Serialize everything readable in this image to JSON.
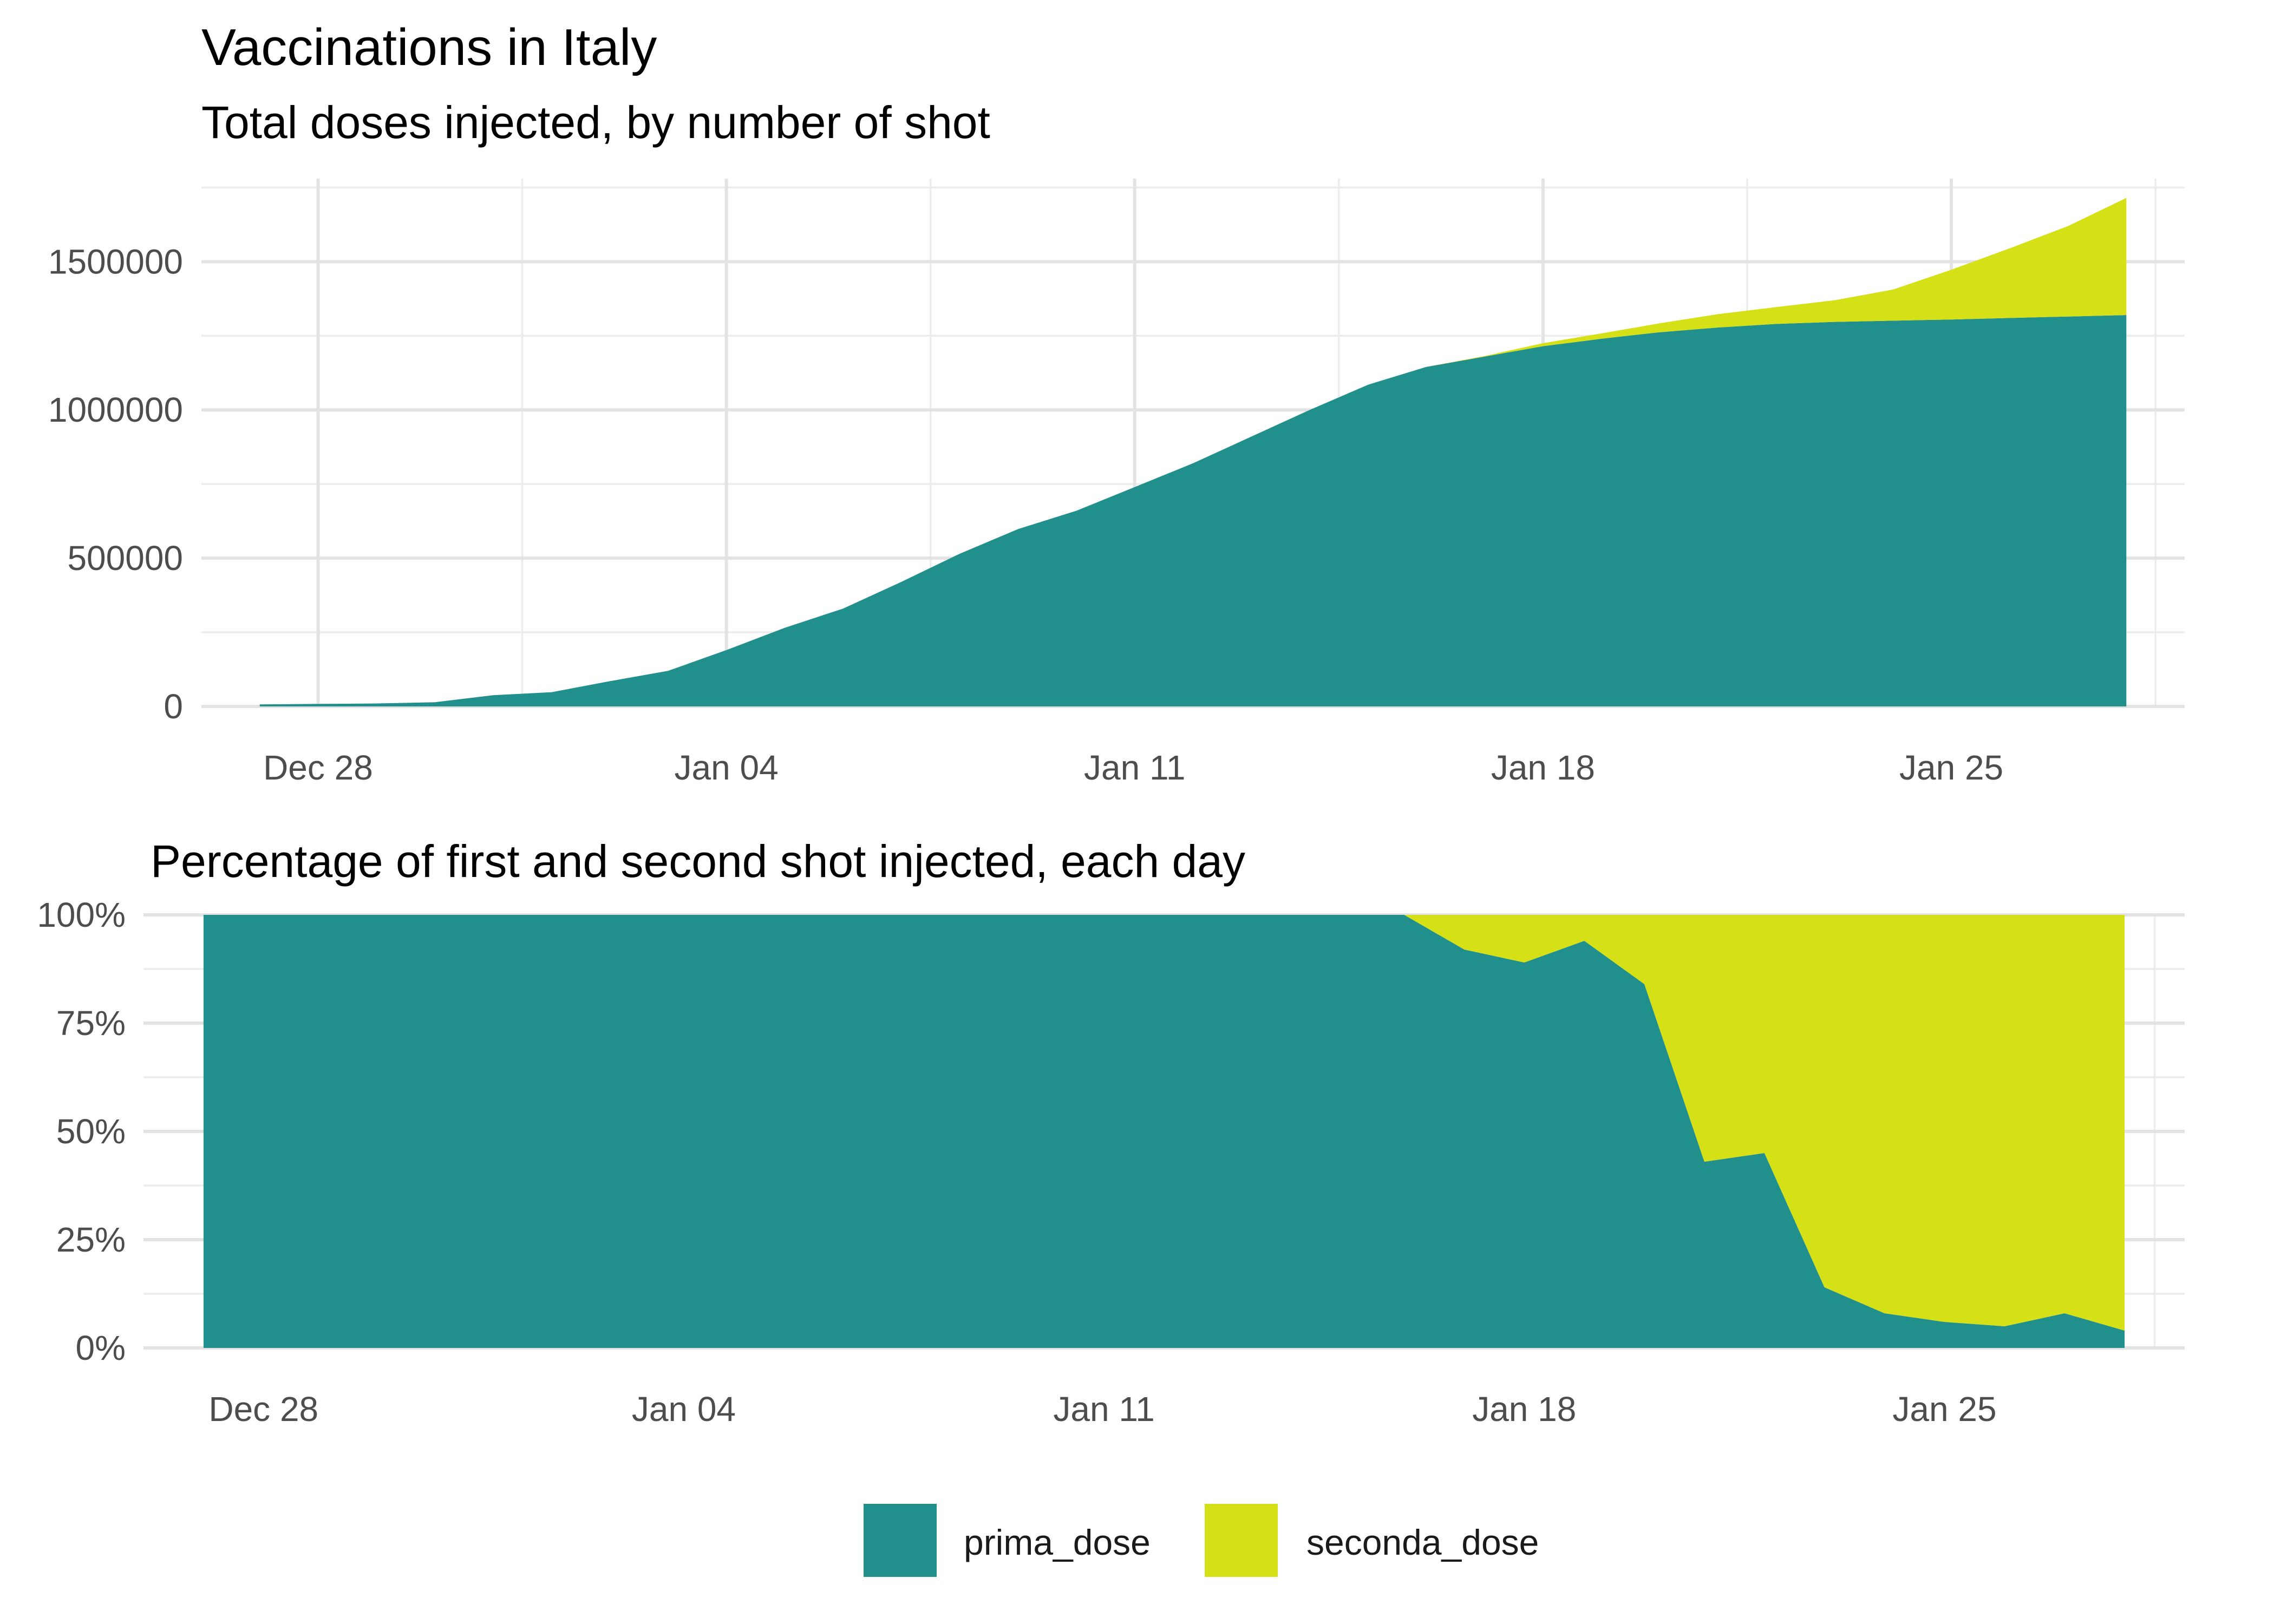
{
  "title": "Vaccinations in Italy",
  "colors": {
    "prima_dose": "#21908C",
    "seconda_dose": "#D5E016",
    "grid": "#E3E3E3",
    "tick_text": "#4D4D4D"
  },
  "legend": {
    "position": "bottom",
    "items": [
      {
        "key": "prima_dose",
        "label": "prima_dose"
      },
      {
        "key": "seconda_dose",
        "label": "seconda_dose"
      }
    ]
  },
  "chart_data": [
    {
      "type": "area",
      "stacked": true,
      "title": "",
      "subtitle": "Total doses injected, by number of shot",
      "xlabel": "",
      "ylabel": "",
      "x": [
        "2020-12-27",
        "2020-12-28",
        "2020-12-29",
        "2020-12-30",
        "2020-12-31",
        "2021-01-01",
        "2021-01-02",
        "2021-01-03",
        "2021-01-04",
        "2021-01-05",
        "2021-01-06",
        "2021-01-07",
        "2021-01-08",
        "2021-01-09",
        "2021-01-10",
        "2021-01-11",
        "2021-01-12",
        "2021-01-13",
        "2021-01-14",
        "2021-01-15",
        "2021-01-16",
        "2021-01-17",
        "2021-01-18",
        "2021-01-19",
        "2021-01-20",
        "2021-01-21",
        "2021-01-22",
        "2021-01-23",
        "2021-01-24",
        "2021-01-25",
        "2021-01-26",
        "2021-01-27",
        "2021-01-28"
      ],
      "series": [
        {
          "name": "prima_dose",
          "values": [
            7000,
            8500,
            10000,
            14000,
            38000,
            48000,
            85000,
            120000,
            190000,
            265000,
            330000,
            420000,
            515000,
            598000,
            660000,
            740000,
            820000,
            910000,
            1000000,
            1085000,
            1145000,
            1180000,
            1215000,
            1240000,
            1262000,
            1278000,
            1290000,
            1297000,
            1301000,
            1305000,
            1310000,
            1315000,
            1320000
          ]
        },
        {
          "name": "seconda_dose",
          "values": [
            0,
            0,
            0,
            0,
            0,
            0,
            0,
            0,
            0,
            0,
            0,
            0,
            0,
            0,
            0,
            0,
            0,
            0,
            0,
            0,
            0,
            2000,
            10000,
            18000,
            30000,
            45000,
            57000,
            73000,
            105000,
            168000,
            235000,
            305000,
            395000
          ]
        }
      ],
      "x_ticks": [
        "Dec 28",
        "Jan 04",
        "Jan 11",
        "Jan 18",
        "Jan 25"
      ],
      "x_tick_dates": [
        "2020-12-28",
        "2021-01-04",
        "2021-01-11",
        "2021-01-18",
        "2021-01-25"
      ],
      "xlim": [
        "2020-12-26",
        "2021-01-29"
      ],
      "y_ticks": [
        0,
        500000,
        1000000,
        1500000
      ],
      "y_tick_labels": [
        "0",
        "500000",
        "1000000",
        "1500000"
      ],
      "ylim": [
        0,
        1780000
      ],
      "grid": true
    },
    {
      "type": "area",
      "stacked": true,
      "normalized": true,
      "title": "",
      "subtitle": "Percentage of first and second shot injected, each day",
      "xlabel": "",
      "ylabel": "",
      "x": [
        "2020-12-27",
        "2020-12-28",
        "2020-12-29",
        "2020-12-30",
        "2020-12-31",
        "2021-01-01",
        "2021-01-02",
        "2021-01-03",
        "2021-01-04",
        "2021-01-05",
        "2021-01-06",
        "2021-01-07",
        "2021-01-08",
        "2021-01-09",
        "2021-01-10",
        "2021-01-11",
        "2021-01-12",
        "2021-01-13",
        "2021-01-14",
        "2021-01-15",
        "2021-01-16",
        "2021-01-17",
        "2021-01-18",
        "2021-01-19",
        "2021-01-20",
        "2021-01-21",
        "2021-01-22",
        "2021-01-23",
        "2021-01-24",
        "2021-01-25",
        "2021-01-26",
        "2021-01-27",
        "2021-01-28"
      ],
      "series": [
        {
          "name": "prima_dose",
          "values": [
            100,
            100,
            100,
            100,
            100,
            100,
            100,
            100,
            100,
            100,
            100,
            100,
            100,
            100,
            100,
            100,
            100,
            100,
            100,
            100,
            100,
            92,
            89,
            94,
            84,
            43,
            45,
            14,
            8,
            6,
            5,
            8,
            4
          ]
        },
        {
          "name": "seconda_dose",
          "values": [
            0,
            0,
            0,
            0,
            0,
            0,
            0,
            0,
            0,
            0,
            0,
            0,
            0,
            0,
            0,
            0,
            0,
            0,
            0,
            0,
            0,
            8,
            11,
            6,
            16,
            57,
            55,
            86,
            92,
            94,
            95,
            92,
            96
          ]
        }
      ],
      "x_ticks": [
        "Dec 28",
        "Jan 04",
        "Jan 11",
        "Jan 18",
        "Jan 25"
      ],
      "x_tick_dates": [
        "2020-12-28",
        "2021-01-04",
        "2021-01-11",
        "2021-01-18",
        "2021-01-25"
      ],
      "xlim": [
        "2020-12-26",
        "2021-01-29"
      ],
      "y_ticks": [
        0,
        25,
        50,
        75,
        100
      ],
      "y_tick_labels": [
        "0%",
        "25%",
        "50%",
        "75%",
        "100%"
      ],
      "ylim": [
        0,
        100
      ],
      "grid": true
    }
  ]
}
